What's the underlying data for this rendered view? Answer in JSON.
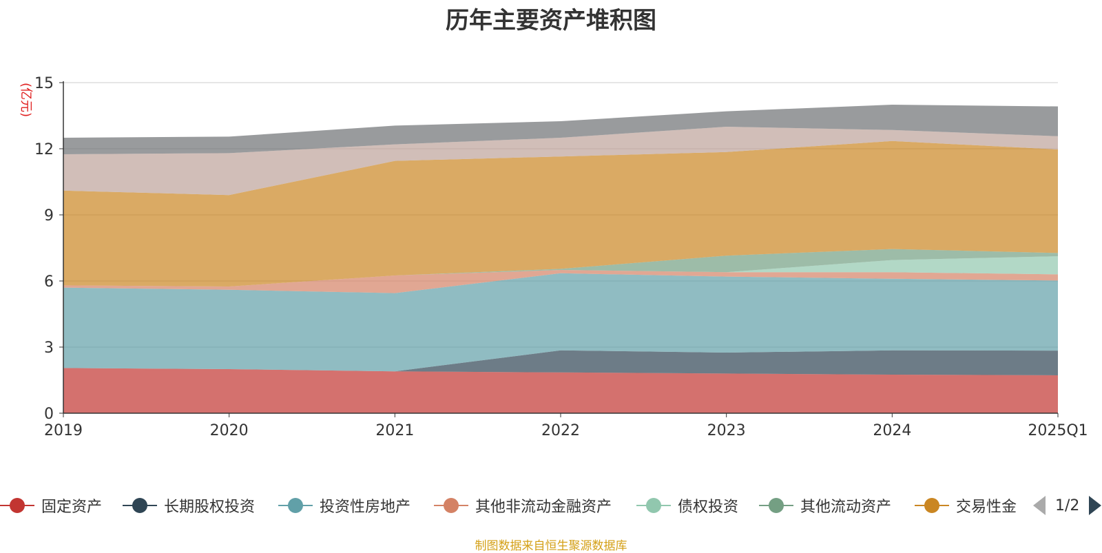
{
  "chart_data": {
    "type": "area",
    "stacked": true,
    "title": "历年主要资产堆积图",
    "unit_label": "(亿元)",
    "categories": [
      "2019",
      "2020",
      "2021",
      "2022",
      "2023",
      "2024",
      "2025Q1"
    ],
    "ylim": [
      0,
      15
    ],
    "yticks": [
      "0",
      "3",
      "6",
      "9",
      "12",
      "15"
    ],
    "grid": true,
    "legend_position": "bottom",
    "series": [
      {
        "name": "固定资产",
        "color": "#c23531",
        "values": [
          2.05,
          2.0,
          1.9,
          1.85,
          1.8,
          1.75,
          1.72
        ]
      },
      {
        "name": "长期股权投资",
        "color": "#2f4554",
        "values": [
          0.0,
          0.0,
          0.0,
          1.0,
          0.95,
          1.1,
          1.12
        ]
      },
      {
        "name": "投资性房地产",
        "color": "#61a0a8",
        "values": [
          3.65,
          3.6,
          3.55,
          3.5,
          3.45,
          3.25,
          3.18
        ]
      },
      {
        "name": "其他非流动金融资产",
        "color": "#d48265",
        "values": [
          0.1,
          0.15,
          0.8,
          0.15,
          0.2,
          0.3,
          0.28
        ]
      },
      {
        "name": "债权投资",
        "color": "#91c7ae",
        "values": [
          0.0,
          0.0,
          0.0,
          0.0,
          0.0,
          0.55,
          0.82
        ]
      },
      {
        "name": "其他流动资产",
        "color": "#749f83",
        "values": [
          0.0,
          0.0,
          0.0,
          0.05,
          0.75,
          0.5,
          0.15
        ]
      },
      {
        "name": "交易性金",
        "color": "#ca8622",
        "values": [
          4.3,
          4.15,
          5.2,
          5.1,
          4.7,
          4.9,
          4.7
        ]
      },
      {
        "name": "",
        "color": "#bda29a",
        "values": [
          1.65,
          1.9,
          0.75,
          0.85,
          1.15,
          0.5,
          0.6
        ]
      },
      {
        "name": "",
        "color": "#6e7074",
        "values": [
          0.75,
          0.75,
          0.85,
          0.75,
          0.7,
          1.15,
          1.35
        ]
      }
    ]
  },
  "legend": {
    "pager_text": "1/2"
  },
  "source_note": "制图数据来自恒生聚源数据库"
}
